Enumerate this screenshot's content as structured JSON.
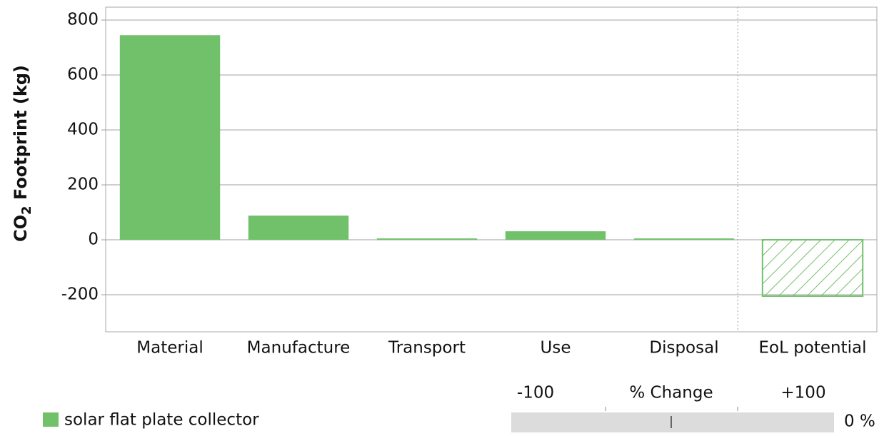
{
  "chart_data": {
    "type": "bar",
    "ylabel": [
      "CO",
      "2",
      " Footprint (kg)"
    ],
    "categories": [
      "Material",
      "Manufacture",
      "Transport",
      "Use",
      "Disposal",
      "EoL potential"
    ],
    "series": [
      {
        "name": "solar flat plate collector",
        "color": "#70c16a",
        "values": [
          745,
          88,
          5,
          31,
          5,
          -205
        ]
      }
    ],
    "hatched": [
      false,
      false,
      false,
      false,
      false,
      true
    ],
    "ylim": [
      -335,
      847
    ],
    "yticks": [
      -200,
      0,
      200,
      400,
      600,
      800
    ],
    "grid": true
  },
  "slider": {
    "min_label": "-100",
    "title": "% Change",
    "max_label": "+100",
    "value_label": "0 %"
  }
}
